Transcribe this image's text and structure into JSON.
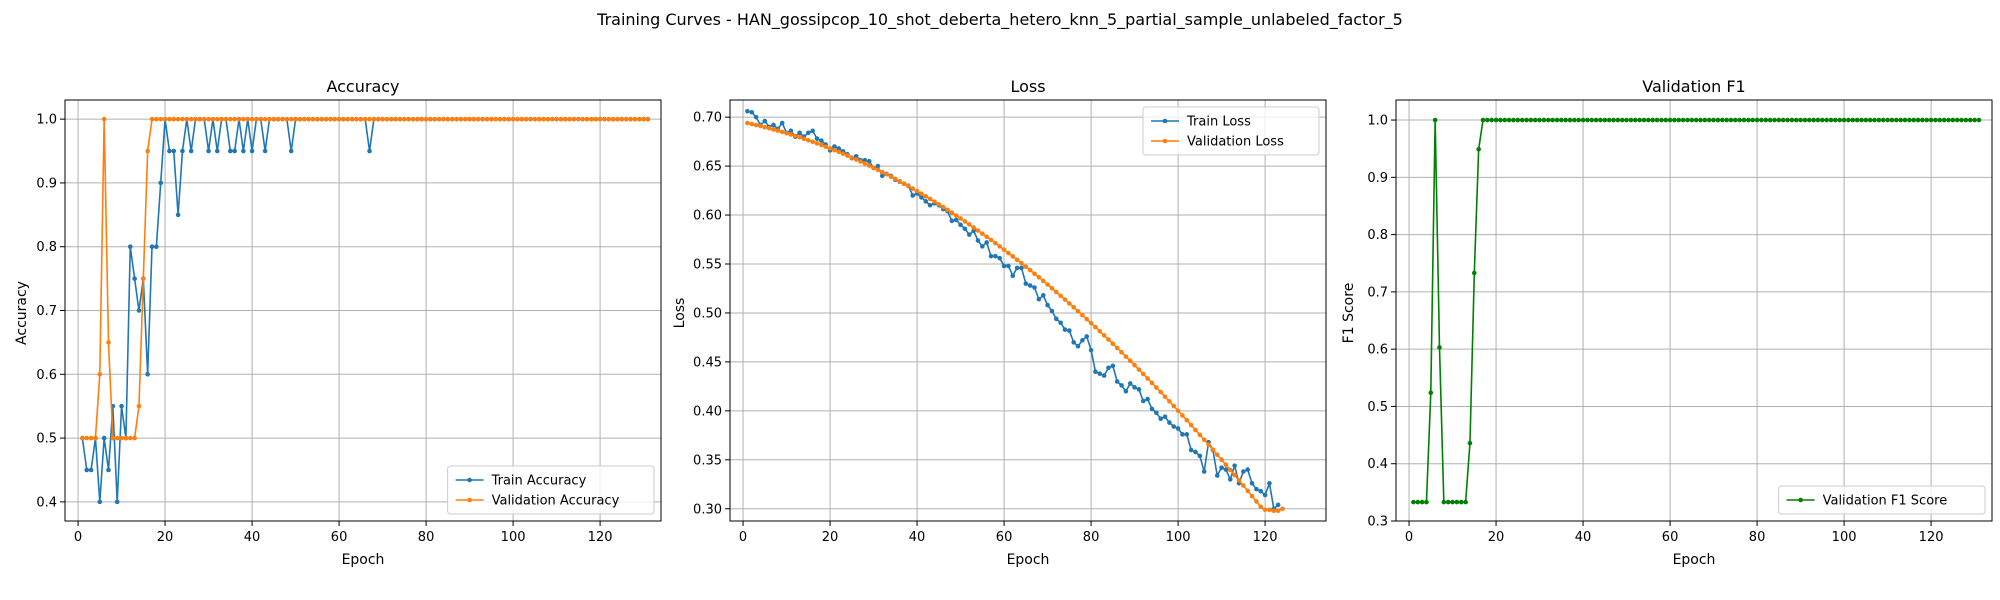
{
  "figure": {
    "suptitle": "Training Curves - HAN_gossipcop_10_shot_deberta_hetero_knn_5_partial_sample_unlabeled_factor_5"
  },
  "colors": {
    "blue": "#1f77b4",
    "orange": "#ff7f0e",
    "green": "#008000",
    "grid": "#b0b0b0"
  },
  "chart_data": [
    {
      "type": "line",
      "title": "Accuracy",
      "xlabel": "Epoch",
      "ylabel": "Accuracy",
      "xlim": [
        -3,
        134
      ],
      "ylim": [
        0.37,
        1.03
      ],
      "xticks": [
        0,
        20,
        40,
        60,
        80,
        100,
        120
      ],
      "yticks": [
        0.4,
        0.5,
        0.6,
        0.7,
        0.8,
        0.9,
        1.0
      ],
      "ytick_labels": [
        "0.4",
        "0.5",
        "0.6",
        "0.7",
        "0.8",
        "0.9",
        "1.0"
      ],
      "grid": true,
      "legend_position": "lower-right",
      "series": [
        {
          "name": "Train Accuracy",
          "color": "#1f77b4",
          "x_start": 1,
          "y": [
            0.5,
            0.45,
            0.45,
            0.5,
            0.4,
            0.5,
            0.45,
            0.55,
            0.4,
            0.55,
            0.5,
            0.8,
            0.75,
            0.7,
            0.75,
            0.6,
            0.8,
            0.8,
            0.9,
            1.0,
            0.95,
            0.95,
            0.85,
            0.95,
            1.0,
            0.95,
            1.0,
            1.0,
            1.0,
            0.95,
            1.0,
            0.95,
            1.0,
            1.0,
            0.95,
            0.95,
            1.0,
            0.95,
            1.0,
            0.95,
            1.0,
            1.0,
            0.95,
            1.0,
            1.0,
            1.0,
            1.0,
            1.0,
            0.95,
            1.0,
            1.0,
            1.0,
            1.0,
            1.0,
            1.0,
            1.0,
            1.0,
            1.0,
            1.0,
            1.0,
            1.0,
            1.0,
            1.0,
            1.0,
            1.0,
            1.0,
            0.95,
            1.0,
            1.0,
            1.0,
            1.0,
            1.0,
            1.0,
            1.0,
            1.0,
            1.0,
            1.0,
            1.0,
            1.0,
            1.0,
            1.0,
            1.0,
            1.0,
            1.0,
            1.0,
            1.0,
            1.0,
            1.0,
            1.0,
            1.0,
            1.0,
            1.0,
            1.0,
            1.0,
            1.0,
            1.0,
            1.0,
            1.0,
            1.0,
            1.0,
            1.0,
            1.0,
            1.0,
            1.0,
            1.0,
            1.0,
            1.0,
            1.0,
            1.0,
            1.0,
            1.0,
            1.0,
            1.0,
            1.0,
            1.0,
            1.0,
            1.0,
            1.0,
            1.0,
            1.0,
            1.0,
            1.0,
            1.0,
            1.0,
            1.0,
            1.0,
            1.0,
            1.0,
            1.0,
            1.0,
            1.0
          ]
        },
        {
          "name": "Validation Accuracy",
          "color": "#ff7f0e",
          "x_start": 1,
          "y": [
            0.5,
            0.5,
            0.5,
            0.5,
            0.6,
            1.0,
            0.65,
            0.5,
            0.5,
            0.5,
            0.5,
            0.5,
            0.5,
            0.55,
            0.75,
            0.95,
            1.0,
            1.0,
            1.0,
            1.0,
            1.0,
            1.0,
            1.0,
            1.0,
            1.0,
            1.0,
            1.0,
            1.0,
            1.0,
            1.0,
            1.0,
            1.0,
            1.0,
            1.0,
            1.0,
            1.0,
            1.0,
            1.0,
            1.0,
            1.0,
            1.0,
            1.0,
            1.0,
            1.0,
            1.0,
            1.0,
            1.0,
            1.0,
            1.0,
            1.0,
            1.0,
            1.0,
            1.0,
            1.0,
            1.0,
            1.0,
            1.0,
            1.0,
            1.0,
            1.0,
            1.0,
            1.0,
            1.0,
            1.0,
            1.0,
            1.0,
            1.0,
            1.0,
            1.0,
            1.0,
            1.0,
            1.0,
            1.0,
            1.0,
            1.0,
            1.0,
            1.0,
            1.0,
            1.0,
            1.0,
            1.0,
            1.0,
            1.0,
            1.0,
            1.0,
            1.0,
            1.0,
            1.0,
            1.0,
            1.0,
            1.0,
            1.0,
            1.0,
            1.0,
            1.0,
            1.0,
            1.0,
            1.0,
            1.0,
            1.0,
            1.0,
            1.0,
            1.0,
            1.0,
            1.0,
            1.0,
            1.0,
            1.0,
            1.0,
            1.0,
            1.0,
            1.0,
            1.0,
            1.0,
            1.0,
            1.0,
            1.0,
            1.0,
            1.0,
            1.0,
            1.0,
            1.0,
            1.0,
            1.0,
            1.0,
            1.0,
            1.0,
            1.0,
            1.0,
            1.0,
            1.0
          ]
        }
      ]
    },
    {
      "type": "line",
      "title": "Loss",
      "xlabel": "Epoch",
      "ylabel": "Loss",
      "xlim": [
        -3,
        134
      ],
      "ylim": [
        0.2875,
        0.7175
      ],
      "xticks": [
        0,
        20,
        40,
        60,
        80,
        100,
        120
      ],
      "yticks": [
        0.3,
        0.35,
        0.4,
        0.45,
        0.5,
        0.55,
        0.6,
        0.65,
        0.7
      ],
      "ytick_labels": [
        "0.30",
        "0.35",
        "0.40",
        "0.45",
        "0.50",
        "0.55",
        "0.60",
        "0.65",
        "0.70"
      ],
      "grid": true,
      "legend_position": "upper-right",
      "series": [
        {
          "name": "Train Loss",
          "color": "#1f77b4",
          "x_start": 1,
          "y": [
            0.706,
            0.705,
            0.7,
            0.692,
            0.696,
            0.69,
            0.692,
            0.688,
            0.694,
            0.684,
            0.686,
            0.68,
            0.684,
            0.68,
            0.684,
            0.686,
            0.678,
            0.676,
            0.672,
            0.666,
            0.67,
            0.668,
            0.665,
            0.662,
            0.658,
            0.66,
            0.656,
            0.656,
            0.655,
            0.648,
            0.65,
            0.64,
            0.642,
            0.64,
            0.636,
            0.634,
            0.632,
            0.63,
            0.62,
            0.622,
            0.618,
            0.614,
            0.61,
            0.612,
            0.61,
            0.606,
            0.604,
            0.594,
            0.595,
            0.59,
            0.586,
            0.58,
            0.584,
            0.574,
            0.568,
            0.572,
            0.558,
            0.558,
            0.556,
            0.548,
            0.548,
            0.538,
            0.546,
            0.546,
            0.53,
            0.528,
            0.526,
            0.514,
            0.518,
            0.508,
            0.502,
            0.494,
            0.49,
            0.483,
            0.482,
            0.47,
            0.466,
            0.472,
            0.476,
            0.462,
            0.44,
            0.438,
            0.436,
            0.444,
            0.446,
            0.43,
            0.426,
            0.42,
            0.428,
            0.424,
            0.422,
            0.41,
            0.412,
            0.402,
            0.398,
            0.392,
            0.394,
            0.388,
            0.384,
            0.382,
            0.376,
            0.376,
            0.36,
            0.358,
            0.354,
            0.338,
            0.368,
            0.36,
            0.334,
            0.342,
            0.34,
            0.33,
            0.344,
            0.326,
            0.338,
            0.34,
            0.326,
            0.32,
            0.318,
            0.314,
            0.326,
            0.3,
            0.304
          ]
        },
        {
          "name": "Validation Loss",
          "color": "#ff7f0e",
          "x_start": 1,
          "y": [
            0.694,
            0.693,
            0.6919,
            0.6909,
            0.6897,
            0.6886,
            0.6874,
            0.6862,
            0.6849,
            0.6836,
            0.6822,
            0.6808,
            0.6794,
            0.6779,
            0.6764,
            0.6748,
            0.6732,
            0.6715,
            0.6698,
            0.6681,
            0.6663,
            0.6645,
            0.6626,
            0.6607,
            0.6587,
            0.6567,
            0.6547,
            0.6526,
            0.6505,
            0.6483,
            0.6461,
            0.6439,
            0.6416,
            0.6392,
            0.6369,
            0.6344,
            0.632,
            0.6295,
            0.627,
            0.6244,
            0.6218,
            0.6191,
            0.6164,
            0.6137,
            0.6109,
            0.6081,
            0.6053,
            0.6024,
            0.5994,
            0.5965,
            0.5935,
            0.5904,
            0.5873,
            0.5842,
            0.581,
            0.5778,
            0.5746,
            0.5713,
            0.568,
            0.5646,
            0.5612,
            0.5578,
            0.5543,
            0.5508,
            0.5472,
            0.5437,
            0.54,
            0.5364,
            0.5327,
            0.529,
            0.5252,
            0.5214,
            0.5175,
            0.5137,
            0.5097,
            0.5058,
            0.5018,
            0.4978,
            0.4937,
            0.4896,
            0.4855,
            0.4813,
            0.4771,
            0.4729,
            0.4686,
            0.4643,
            0.4599,
            0.4555,
            0.4511,
            0.4467,
            0.4422,
            0.4376,
            0.4331,
            0.4285,
            0.4238,
            0.4192,
            0.4145,
            0.4097,
            0.4049,
            0.4001,
            0.3953,
            0.3904,
            0.3855,
            0.3805,
            0.3755,
            0.3705,
            0.3655,
            0.3604,
            0.3552,
            0.3501,
            0.3449,
            0.3396,
            0.3344,
            0.329,
            0.3237,
            0.3183,
            0.3129,
            0.3075,
            0.302,
            0.299,
            0.299,
            0.298,
            0.298,
            0.3
          ]
        }
      ]
    },
    {
      "type": "line",
      "title": "Validation F1",
      "xlabel": "Epoch",
      "ylabel": "F1 Score",
      "xlim": [
        -3,
        134
      ],
      "ylim": [
        0.3,
        1.035
      ],
      "xticks": [
        0,
        20,
        40,
        60,
        80,
        100,
        120
      ],
      "yticks": [
        0.3,
        0.4,
        0.5,
        0.6,
        0.7,
        0.8,
        0.9,
        1.0
      ],
      "ytick_labels": [
        "0.3",
        "0.4",
        "0.5",
        "0.6",
        "0.7",
        "0.8",
        "0.9",
        "1.0"
      ],
      "grid": true,
      "legend_position": "lower-right",
      "series": [
        {
          "name": "Validation F1 Score",
          "color": "#008000",
          "x_start": 1,
          "y": [
            0.333,
            0.333,
            0.333,
            0.333,
            0.524,
            1.0,
            0.603,
            0.333,
            0.333,
            0.333,
            0.333,
            0.333,
            0.333,
            0.436,
            0.733,
            0.949,
            1.0,
            1.0,
            1.0,
            1.0,
            1.0,
            1.0,
            1.0,
            1.0,
            1.0,
            1.0,
            1.0,
            1.0,
            1.0,
            1.0,
            1.0,
            1.0,
            1.0,
            1.0,
            1.0,
            1.0,
            1.0,
            1.0,
            1.0,
            1.0,
            1.0,
            1.0,
            1.0,
            1.0,
            1.0,
            1.0,
            1.0,
            1.0,
            1.0,
            1.0,
            1.0,
            1.0,
            1.0,
            1.0,
            1.0,
            1.0,
            1.0,
            1.0,
            1.0,
            1.0,
            1.0,
            1.0,
            1.0,
            1.0,
            1.0,
            1.0,
            1.0,
            1.0,
            1.0,
            1.0,
            1.0,
            1.0,
            1.0,
            1.0,
            1.0,
            1.0,
            1.0,
            1.0,
            1.0,
            1.0,
            1.0,
            1.0,
            1.0,
            1.0,
            1.0,
            1.0,
            1.0,
            1.0,
            1.0,
            1.0,
            1.0,
            1.0,
            1.0,
            1.0,
            1.0,
            1.0,
            1.0,
            1.0,
            1.0,
            1.0,
            1.0,
            1.0,
            1.0,
            1.0,
            1.0,
            1.0,
            1.0,
            1.0,
            1.0,
            1.0,
            1.0,
            1.0,
            1.0,
            1.0,
            1.0,
            1.0,
            1.0,
            1.0,
            1.0,
            1.0,
            1.0,
            1.0,
            1.0,
            1.0,
            1.0,
            1.0,
            1.0,
            1.0,
            1.0,
            1.0,
            1.0
          ]
        }
      ]
    }
  ]
}
